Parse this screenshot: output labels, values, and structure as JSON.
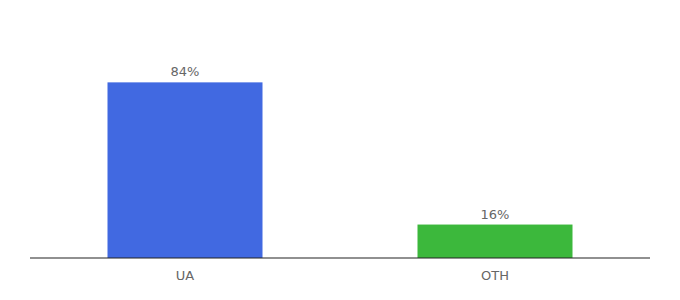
{
  "chart_data": {
    "type": "bar",
    "categories": [
      "UA",
      "OTH"
    ],
    "values": [
      84,
      16
    ],
    "value_labels": [
      "84%",
      "16%"
    ],
    "colors": [
      "#4169e1",
      "#3cb83c"
    ],
    "ylim": [
      0,
      110
    ],
    "data_labels": true,
    "tick_labels": "x",
    "grid": false
  }
}
